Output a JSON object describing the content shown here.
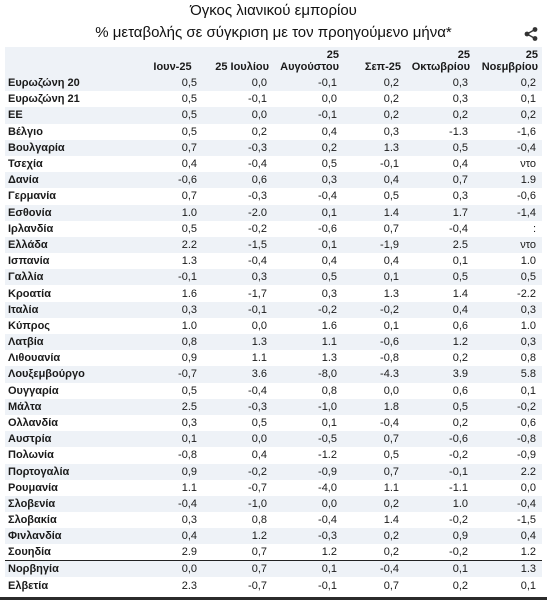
{
  "title": "Όγκος λιανικού εμπορίου",
  "subtitle": "% μεταβολής σε σύγκριση με τον προηγούμενο μήνα*",
  "columns": [
    "",
    "Ιουν-25",
    "25 Ιουλίου",
    "25 Αυγούστου",
    "Σεπ-25",
    "25 Οκτωβρίου",
    "25 Νοεμβρίου"
  ],
  "rows": [
    [
      "Ευρωζώνη 20",
      "0,5",
      "0,0",
      "-0,1",
      "0,2",
      "0,3",
      "0,2"
    ],
    [
      "Ευρωζώνη 21",
      "0,5",
      "-0,1",
      "0,0",
      "0,2",
      "0,3",
      "0,1"
    ],
    [
      "ΕΕ",
      "0,5",
      "0,0",
      "-0,1",
      "0,2",
      "0,2",
      "0,2"
    ],
    [
      "Βέλγιο",
      "0,5",
      "0,2",
      "0,4",
      "0,3",
      "-1.3",
      "-1,6"
    ],
    [
      "Βουλγαρία",
      "0,7",
      "-0,3",
      "0,2",
      "1.3",
      "0,5",
      "-0,4"
    ],
    [
      "Τσεχία",
      "0,4",
      "-0,4",
      "0,5",
      "-0,1",
      "0,4",
      "ντο"
    ],
    [
      "Δανία",
      "-0,6",
      "0,6",
      "0,3",
      "0,4",
      "0,7",
      "1.9"
    ],
    [
      "Γερμανία",
      "0,7",
      "-0,3",
      "-0,4",
      "0,5",
      "0,3",
      "-0,6"
    ],
    [
      "Εσθονία",
      "1.0",
      "-2.0",
      "0,1",
      "1.4",
      "1.7",
      "-1,4"
    ],
    [
      "Ιρλανδία",
      "0,5",
      "-0,2",
      "-0,6",
      "0,7",
      "-0,4",
      ":"
    ],
    [
      "Ελλάδα",
      "2.2",
      "-1,5",
      "0,1",
      "-1,9",
      "2.5",
      "ντο"
    ],
    [
      "Ισπανία",
      "1.3",
      "-0,4",
      "0,4",
      "0,4",
      "0,1",
      "1.0"
    ],
    [
      "Γαλλία",
      "-0,1",
      "0,3",
      "0,5",
      "0,1",
      "0,5",
      "0,5"
    ],
    [
      "Κροατία",
      "1.6",
      "-1,7",
      "0,3",
      "1.3",
      "1.4",
      "-2.2"
    ],
    [
      "Ιταλία",
      "0,3",
      "-0,1",
      "-0,2",
      "-0,2",
      "0,4",
      "0,3"
    ],
    [
      "Κύπρος",
      "1.0",
      "0,0",
      "1.6",
      "0,1",
      "0,6",
      "1.0"
    ],
    [
      "Λατβία",
      "0,8",
      "1.3",
      "1.1",
      "-0,6",
      "1.2",
      "0,3"
    ],
    [
      "Λιθουανία",
      "0,9",
      "1.1",
      "1.3",
      "-0,8",
      "0,2",
      "0,8"
    ],
    [
      "Λουξεμβούργο",
      "-0,7",
      "3.6",
      "-8,0",
      "-4.3",
      "3.9",
      "5.8"
    ],
    [
      "Ουγγαρία",
      "0,5",
      "-0,4",
      "0,8",
      "0,0",
      "0,6",
      "0,1"
    ],
    [
      "Μάλτα",
      "2.5",
      "-0,3",
      "-1,0",
      "1.8",
      "0,5",
      "-0,2"
    ],
    [
      "Ολλανδία",
      "0,3",
      "0,5",
      "0,1",
      "-0,4",
      "0,2",
      "0,6"
    ],
    [
      "Αυστρία",
      "0,1",
      "0,0",
      "-0,5",
      "0,7",
      "-0,6",
      "-0,8"
    ],
    [
      "Πολωνία",
      "-0,8",
      "0,4",
      "-1.2",
      "0,5",
      "-0,2",
      "-0,9"
    ],
    [
      "Πορτογαλία",
      "0,9",
      "-0,2",
      "-0,9",
      "0,7",
      "-0,1",
      "2.2"
    ],
    [
      "Ρουμανία",
      "1.1",
      "-0,7",
      "-4,0",
      "1.1",
      "-1.1",
      "0,0"
    ],
    [
      "Σλοβενία",
      "-0,4",
      "-1,0",
      "0,0",
      "0,2",
      "1.0",
      "-0,4"
    ],
    [
      "Σλοβακία",
      "0,3",
      "0,8",
      "-0,4",
      "1.4",
      "-0,2",
      "-1,5"
    ],
    [
      "Φινλανδία",
      "0,4",
      "1.2",
      "-0,3",
      "0,2",
      "0,9",
      "0,4"
    ],
    [
      "Σουηδία",
      "2.9",
      "0,7",
      "1.2",
      "0,2",
      "-0,2",
      "1.2"
    ],
    [
      "Νορβηγία",
      "0,0",
      "0,7",
      "0,1",
      "-0,4",
      "0,1",
      "1.3"
    ],
    [
      "Ελβετία",
      "2.3",
      "-0,7",
      "-0,1",
      "0,7",
      "0,2",
      "0,1"
    ]
  ],
  "separator_before_row": 30,
  "icons": {
    "share": "share-icon"
  }
}
